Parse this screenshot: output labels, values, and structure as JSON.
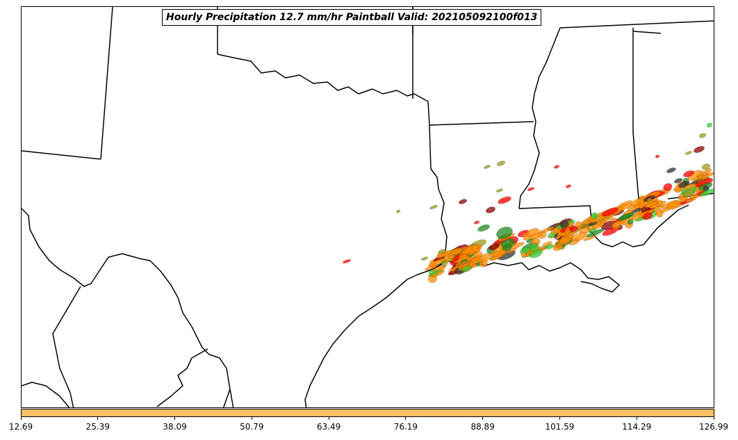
{
  "title": "Hourly Precipitation 12.7 mm/hr Paintball Valid: 202105092100f013",
  "map": {
    "boundary_color": "#000000",
    "paintball_colors": [
      "#ff0000",
      "#8b0000",
      "#ff8c00",
      "#32cd32",
      "#228b22",
      "#9a9a1e",
      "#333333"
    ]
  },
  "colorbar": {
    "color": "#ffbf66",
    "min": 12.69,
    "max": 126.99,
    "tick_labels": [
      "12.69",
      "25.39",
      "38.09",
      "50.79",
      "63.49",
      "76.19",
      "88.89",
      "101.59",
      "114.29",
      "126.99"
    ]
  }
}
